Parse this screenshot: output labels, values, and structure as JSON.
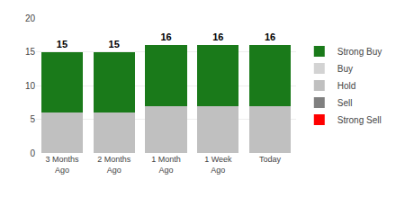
{
  "chart_data": {
    "type": "bar",
    "stacked": true,
    "categories": [
      "3 Months\nAgo",
      "2 Months\nAgo",
      "1 Month\nAgo",
      "1 Week\nAgo",
      "Today"
    ],
    "series": [
      {
        "name": "Strong Buy",
        "color": "#1a7a1a",
        "values": [
          9,
          9,
          9,
          9,
          9
        ]
      },
      {
        "name": "Buy",
        "color": "#d3d3d3",
        "values": [
          null,
          null,
          null,
          null,
          null
        ]
      },
      {
        "name": "Hold",
        "color": "#c0c0c0",
        "values": [
          6,
          6,
          7,
          7,
          7
        ]
      },
      {
        "name": "Sell",
        "color": "#808080",
        "values": [
          null,
          null,
          null,
          null,
          null
        ]
      },
      {
        "name": "Strong Sell",
        "color": "#ff0000",
        "values": [
          null,
          null,
          null,
          null,
          null
        ]
      }
    ],
    "totals": [
      15,
      15,
      16,
      16,
      16
    ],
    "ylim": [
      0,
      20
    ],
    "yticks": [
      0,
      5,
      10,
      15,
      20
    ],
    "grid": true,
    "legend": "right"
  }
}
